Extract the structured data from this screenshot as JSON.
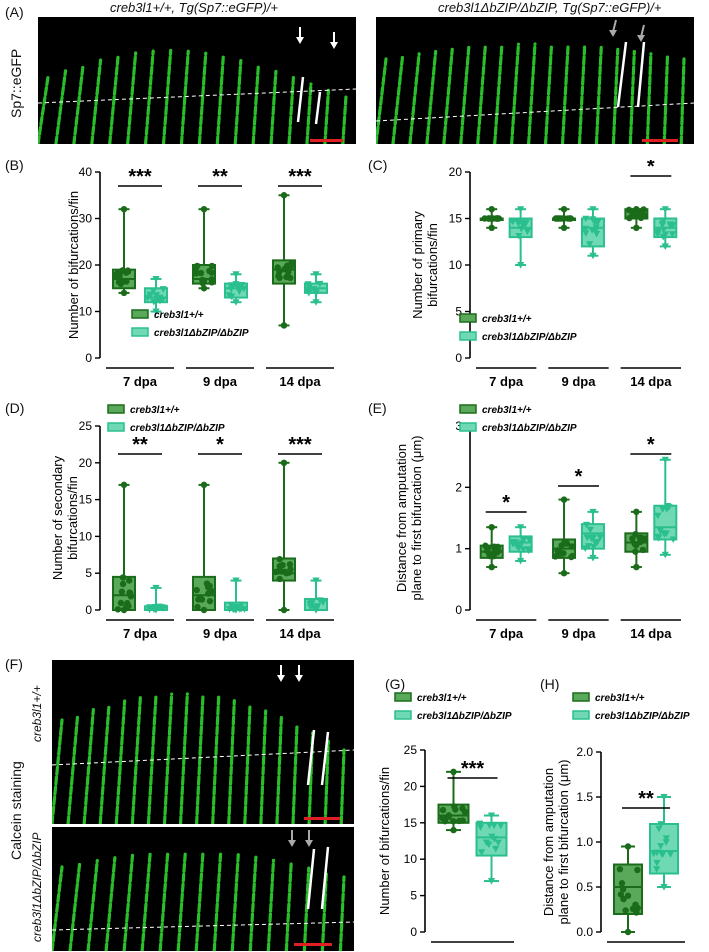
{
  "panels": {
    "A": "(A)",
    "B": "(B)",
    "C": "(C)",
    "D": "(D)",
    "E": "(E)",
    "F": "(F)",
    "G": "(G)",
    "H": "(H)"
  },
  "images": {
    "A_left_title": "creb3l1+/+, Tg(Sp7::eGFP)/+",
    "A_right_title": "creb3l1ΔbZIP/ΔbZIP, Tg(Sp7::eGFP)/+",
    "A_side": "Sp7::eGFP",
    "F_side": "Calcein staining",
    "F_top_label": "creb3l1+/+",
    "F_bottom_label": "creb3l1ΔbZIP/ΔbZIP"
  },
  "legend": {
    "wt": "creb3l1+/+",
    "mut": "creb3l1ΔbZIP/ΔbZIP"
  },
  "colors": {
    "wt": "#1a6b1a",
    "wt_fill": "#5aa85a",
    "mut": "#2bbf8f",
    "mut_fill": "#6fd9b4"
  },
  "chart_data": [
    {
      "id": "B",
      "type": "box",
      "ylabel": "Number of bifurcations/fin",
      "ylim": [
        0,
        40
      ],
      "yticks": [
        0,
        10,
        20,
        30,
        40
      ],
      "categories": [
        "7 dpa",
        "9 dpa",
        "14 dpa"
      ],
      "series": [
        {
          "name": "creb3l1+/+",
          "boxes": [
            {
              "min": 14,
              "q1": 15,
              "median": 17,
              "q3": 19,
              "max": 32
            },
            {
              "min": 15,
              "q1": 16,
              "median": 17,
              "q3": 20,
              "max": 32
            },
            {
              "min": 7,
              "q1": 16,
              "median": 19,
              "q3": 21,
              "max": 35
            }
          ]
        },
        {
          "name": "creb3l1ΔbZIP/ΔbZIP",
          "boxes": [
            {
              "min": 10,
              "q1": 12,
              "median": 13,
              "q3": 15,
              "max": 17
            },
            {
              "min": 12,
              "q1": 13,
              "median": 15,
              "q3": 16,
              "max": 18
            },
            {
              "min": 12,
              "q1": 14,
              "median": 15,
              "q3": 16,
              "max": 18
            }
          ]
        }
      ],
      "significance": [
        "***",
        "**",
        "***"
      ]
    },
    {
      "id": "C",
      "type": "box",
      "ylabel": "Number of primary bifurcations/fin",
      "ylim": [
        0,
        20
      ],
      "yticks": [
        0,
        5,
        10,
        15,
        20
      ],
      "categories": [
        "7 dpa",
        "9 dpa",
        "14 dpa"
      ],
      "series": [
        {
          "name": "creb3l1+/+",
          "boxes": [
            {
              "min": 14,
              "q1": 15,
              "median": 15,
              "q3": 15,
              "max": 16
            },
            {
              "min": 14,
              "q1": 15,
              "median": 15,
              "q3": 15,
              "max": 16
            },
            {
              "min": 14,
              "q1": 15,
              "median": 15,
              "q3": 16,
              "max": 16
            }
          ]
        },
        {
          "name": "creb3l1ΔbZIP/ΔbZIP",
          "boxes": [
            {
              "min": 10,
              "q1": 13,
              "median": 14,
              "q3": 15,
              "max": 16
            },
            {
              "min": 11,
              "q1": 12,
              "median": 14,
              "q3": 15,
              "max": 16
            },
            {
              "min": 12,
              "q1": 13,
              "median": 14,
              "q3": 15,
              "max": 16
            }
          ]
        }
      ],
      "significance": [
        "",
        "",
        "*"
      ]
    },
    {
      "id": "D",
      "type": "box",
      "ylabel": "Number of secondary bifurcations/fin",
      "ylim": [
        0,
        25
      ],
      "yticks": [
        0,
        5,
        10,
        15,
        20,
        25
      ],
      "categories": [
        "7 dpa",
        "9 dpa",
        "14 dpa"
      ],
      "series": [
        {
          "name": "creb3l1+/+",
          "boxes": [
            {
              "min": 0,
              "q1": 0,
              "median": 2,
              "q3": 4.5,
              "max": 17
            },
            {
              "min": 0,
              "q1": 0,
              "median": 2,
              "q3": 4.5,
              "max": 17
            },
            {
              "min": 0,
              "q1": 4,
              "median": 5,
              "q3": 7,
              "max": 20
            }
          ]
        },
        {
          "name": "creb3l1ΔbZIP/ΔbZIP",
          "boxes": [
            {
              "min": 0,
              "q1": 0,
              "median": 0,
              "q3": 0.5,
              "max": 3
            },
            {
              "min": 0,
              "q1": 0,
              "median": 0,
              "q3": 1,
              "max": 4
            },
            {
              "min": 0,
              "q1": 0,
              "median": 0,
              "q3": 1.5,
              "max": 4
            }
          ]
        }
      ],
      "significance": [
        "**",
        "*",
        "***"
      ]
    },
    {
      "id": "E",
      "type": "box",
      "ylabel": "Distance from amputation plane to first bifurcation (μm)",
      "ylim": [
        0,
        3
      ],
      "yticks": [
        0,
        1,
        2,
        3
      ],
      "categories": [
        "7 dpa",
        "9 dpa",
        "14 dpa"
      ],
      "series": [
        {
          "name": "creb3l1+/+",
          "boxes": [
            {
              "min": 0.7,
              "q1": 0.85,
              "median": 0.95,
              "q3": 1.05,
              "max": 1.35
            },
            {
              "min": 0.6,
              "q1": 0.85,
              "median": 1.0,
              "q3": 1.15,
              "max": 1.8
            },
            {
              "min": 0.7,
              "q1": 0.95,
              "median": 1.1,
              "q3": 1.25,
              "max": 1.6
            }
          ]
        },
        {
          "name": "creb3l1ΔbZIP/ΔbZIP",
          "boxes": [
            {
              "min": 0.8,
              "q1": 0.95,
              "median": 1.1,
              "q3": 1.2,
              "max": 1.35
            },
            {
              "min": 0.85,
              "q1": 1.0,
              "median": 1.25,
              "q3": 1.4,
              "max": 1.6
            },
            {
              "min": 0.9,
              "q1": 1.15,
              "median": 1.35,
              "q3": 1.7,
              "max": 2.45
            }
          ]
        }
      ],
      "significance": [
        "*",
        "*",
        "*"
      ]
    },
    {
      "id": "G",
      "type": "box",
      "ylabel": "Number of bifurcations/fin",
      "ylim": [
        0,
        25
      ],
      "yticks": [
        0,
        5,
        10,
        15,
        20,
        25
      ],
      "categories": [
        ""
      ],
      "series": [
        {
          "name": "creb3l1+/+",
          "boxes": [
            {
              "min": 14,
              "q1": 15,
              "median": 16,
              "q3": 17.5,
              "max": 22
            }
          ]
        },
        {
          "name": "creb3l1ΔbZIP/ΔbZIP",
          "boxes": [
            {
              "min": 7,
              "q1": 10.5,
              "median": 13,
              "q3": 15,
              "max": 16
            }
          ]
        }
      ],
      "significance": [
        "***"
      ]
    },
    {
      "id": "H",
      "type": "box",
      "ylabel": "Distance from amputation plane to first bifurcation (μm)",
      "ylim": [
        0,
        2
      ],
      "yticks": [
        "0.0",
        "0.5",
        "1.0",
        "1.5",
        "2.0"
      ],
      "categories": [
        ""
      ],
      "series": [
        {
          "name": "creb3l1+/+",
          "boxes": [
            {
              "min": 0,
              "q1": 0.2,
              "median": 0.5,
              "q3": 0.75,
              "max": 0.95
            }
          ]
        },
        {
          "name": "creb3l1ΔbZIP/ΔbZIP",
          "boxes": [
            {
              "min": 0.5,
              "q1": 0.65,
              "median": 0.9,
              "q3": 1.2,
              "max": 1.5
            }
          ]
        }
      ],
      "significance": [
        "**"
      ]
    }
  ]
}
